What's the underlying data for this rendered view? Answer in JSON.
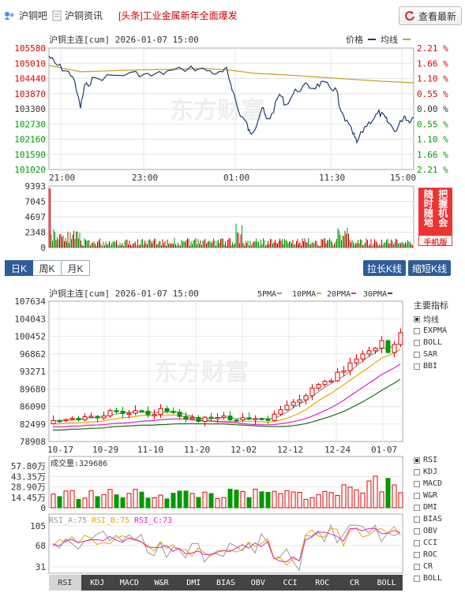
{
  "topbar": {
    "forum_label": "沪铜吧",
    "news_label": "沪铜资讯",
    "headline": "[头条]工业金属新年全面爆发",
    "refresh_label": "查看最新"
  },
  "intraday": {
    "title": "沪铜主连[cum] 2026-01-07 15:00",
    "legend_price": "价格",
    "legend_avg": "均线",
    "price_ticks": [
      "105580",
      "105010",
      "104440",
      "103870",
      "103300",
      "102730",
      "102160",
      "101590",
      "101020"
    ],
    "pct_ticks": [
      "2.21 %",
      "1.66 %",
      "1.10 %",
      "0.55 %",
      "0.00 %",
      "0.55 %",
      "1.10 %",
      "1.66 %",
      "2.21 %"
    ],
    "time_ticks": [
      "21:00",
      "23:00",
      "01:00",
      "11:30",
      "15:00"
    ],
    "volume_ticks": [
      "9393",
      "7045",
      "4697",
      "2348",
      "0"
    ],
    "price_color": "#1f3b6e",
    "avg_color": "#c9a227"
  },
  "promo": {
    "text": [
      "把握机会",
      "随时随地"
    ],
    "footer": "手机版"
  },
  "period_tabs": [
    "日K",
    "周K",
    "月K"
  ],
  "k_buttons": {
    "stretch": "拉长K线",
    "shorten": "缩短K线"
  },
  "kline": {
    "title": "沪铜主连[cum] 2026-01-07 15:00",
    "ma_legend": [
      "5PMA",
      "10PMA",
      "20PMA",
      "30PMA"
    ],
    "ma_colors": [
      "#999999",
      "#e8a800",
      "#e020c8",
      "#226622"
    ],
    "price_ticks": [
      "107634",
      "104043",
      "100452",
      "96862",
      "93271",
      "89680",
      "86090",
      "82499",
      "78908"
    ],
    "date_ticks": [
      "10-17",
      "10-29",
      "11-10",
      "11-20",
      "12-02",
      "12-12",
      "12-24",
      "01-07"
    ],
    "volume_label": "成交量:329686",
    "volume_ticks": [
      "57.80万",
      "43.35万",
      "28.90万",
      "14.45万",
      "0"
    ]
  },
  "main_indicators": {
    "title": "主要指标",
    "items": [
      {
        "label": "均线",
        "checked": true
      },
      {
        "label": "EXPMA",
        "checked": false
      },
      {
        "label": "BOLL",
        "checked": false
      },
      {
        "label": "SAR",
        "checked": false
      },
      {
        "label": "BBI",
        "checked": false
      }
    ]
  },
  "sub_indicators": {
    "items": [
      {
        "label": "RSI",
        "checked": true
      },
      {
        "label": "KDJ",
        "checked": false
      },
      {
        "label": "MACD",
        "checked": false
      },
      {
        "label": "W&R",
        "checked": false
      },
      {
        "label": "DMI",
        "checked": false
      },
      {
        "label": "BIAS",
        "checked": false
      },
      {
        "label": "OBV",
        "checked": false
      },
      {
        "label": "CCI",
        "checked": false
      },
      {
        "label": "ROC",
        "checked": false
      },
      {
        "label": "CR",
        "checked": false
      },
      {
        "label": "BOLL",
        "checked": false
      }
    ]
  },
  "rsi": {
    "legend": [
      "RSI_A:75",
      "RSI_B:75",
      "RSI_C:73"
    ],
    "colors": [
      "#999999",
      "#e8a800",
      "#e020c8"
    ],
    "ticks": [
      "105",
      "68",
      "31"
    ]
  },
  "indicator_tabs": [
    "RSI",
    "KDJ",
    "MACD",
    "W&R",
    "DMI",
    "BIAS",
    "OBV",
    "CCI",
    "ROC",
    "CR",
    "BOLL"
  ]
}
